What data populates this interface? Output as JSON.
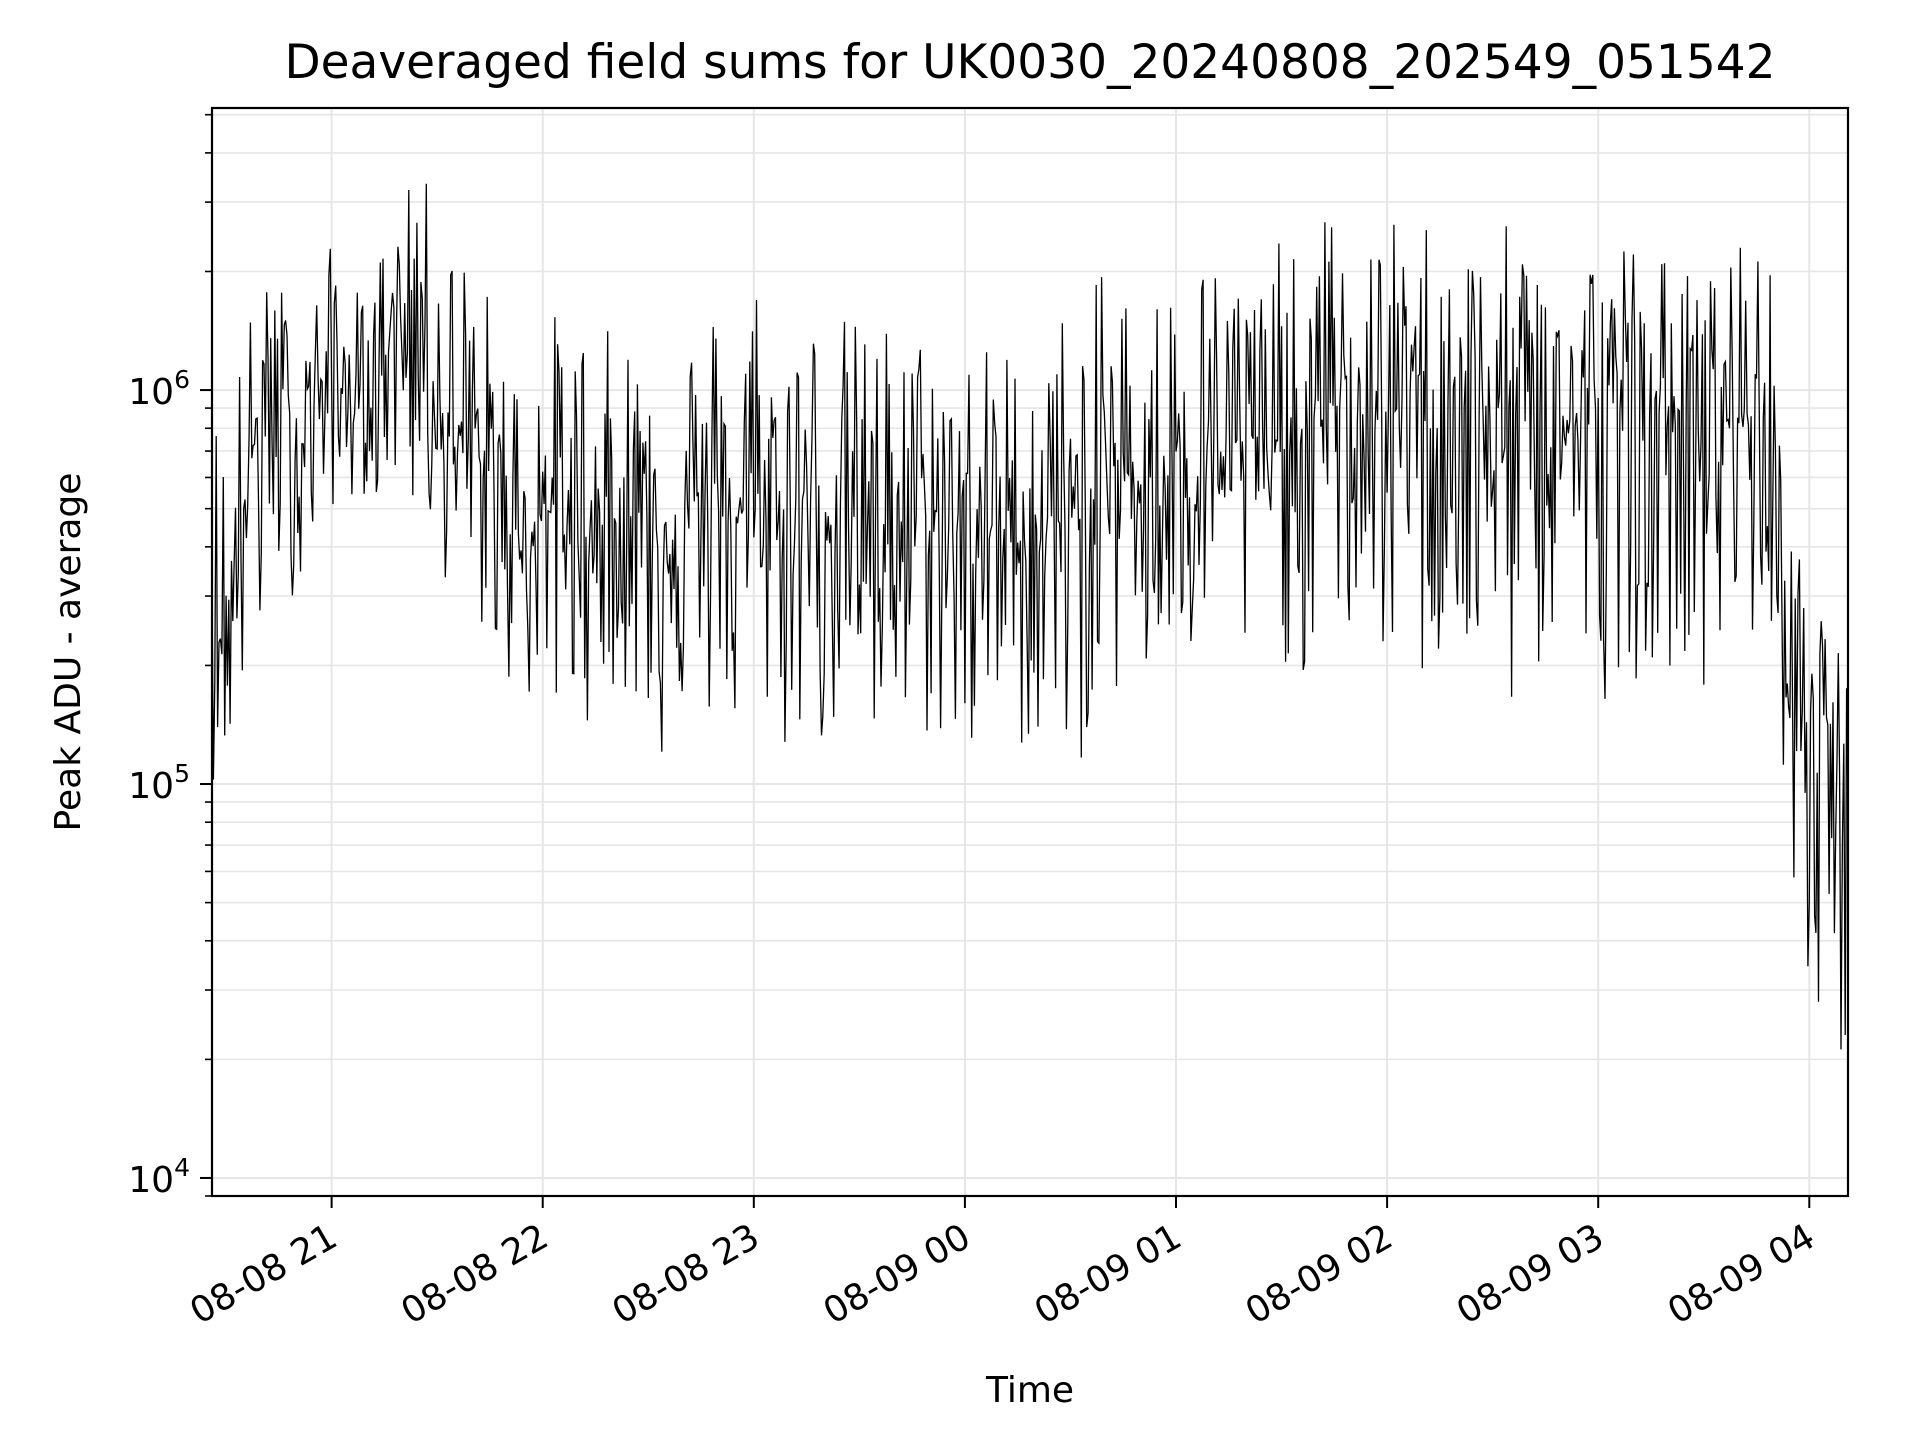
{
  "chart_data": {
    "type": "line",
    "title": "Deaveraged field sums for UK0030_20240808_202549_051542",
    "xlabel": "Time",
    "ylabel": "Peak ADU - average",
    "y_scale": "log",
    "ylim": [
      9000,
      5200000
    ],
    "xlim": [
      "2024-08-08 20:26",
      "2024-08-09 04:11"
    ],
    "grid": true,
    "legend": "none",
    "line_color": "#000000",
    "grid_color": "#e6e6e6",
    "x_ticks": [
      {
        "value": "2024-08-08 21:00",
        "label": "08-08 21"
      },
      {
        "value": "2024-08-08 22:00",
        "label": "08-08 22"
      },
      {
        "value": "2024-08-08 23:00",
        "label": "08-08 23"
      },
      {
        "value": "2024-08-09 00:00",
        "label": "08-09 00"
      },
      {
        "value": "2024-08-09 01:00",
        "label": "08-09 01"
      },
      {
        "value": "2024-08-09 02:00",
        "label": "08-09 02"
      },
      {
        "value": "2024-08-09 03:00",
        "label": "08-09 03"
      },
      {
        "value": "2024-08-09 04:00",
        "label": "08-09 04"
      }
    ],
    "y_ticks": [
      {
        "value": 10000,
        "base": "10",
        "exp": "4"
      },
      {
        "value": 100000,
        "base": "10",
        "exp": "5"
      },
      {
        "value": 1000000,
        "base": "10",
        "exp": "6"
      }
    ],
    "series": [
      {
        "x": [
          "2024-08-08 20:26",
          "2024-08-08 20:30",
          "2024-08-08 20:35",
          "2024-08-08 20:40",
          "2024-08-08 20:45",
          "2024-08-08 20:50",
          "2024-08-08 20:55",
          "2024-08-08 21:00",
          "2024-08-08 21:05",
          "2024-08-08 21:10",
          "2024-08-08 21:15",
          "2024-08-08 21:20",
          "2024-08-08 21:25",
          "2024-08-08 21:30",
          "2024-08-08 21:35",
          "2024-08-08 21:40",
          "2024-08-08 21:45",
          "2024-08-08 21:50",
          "2024-08-08 21:55",
          "2024-08-08 22:00",
          "2024-08-08 22:05",
          "2024-08-08 22:10",
          "2024-08-08 22:15",
          "2024-08-08 22:20",
          "2024-08-08 22:25",
          "2024-08-08 22:30",
          "2024-08-08 22:35",
          "2024-08-08 22:40",
          "2024-08-08 22:45",
          "2024-08-08 22:50",
          "2024-08-08 22:55",
          "2024-08-08 23:00",
          "2024-08-08 23:05",
          "2024-08-08 23:10",
          "2024-08-08 23:15",
          "2024-08-08 23:20",
          "2024-08-08 23:25",
          "2024-08-08 23:30",
          "2024-08-08 23:35",
          "2024-08-08 23:40",
          "2024-08-08 23:45",
          "2024-08-08 23:50",
          "2024-08-08 23:55",
          "2024-08-09 00:00",
          "2024-08-09 00:05",
          "2024-08-09 00:10",
          "2024-08-09 00:15",
          "2024-08-09 00:20",
          "2024-08-09 00:25",
          "2024-08-09 00:30",
          "2024-08-09 00:35",
          "2024-08-09 00:40",
          "2024-08-09 00:45",
          "2024-08-09 00:50",
          "2024-08-09 00:55",
          "2024-08-09 01:00",
          "2024-08-09 01:05",
          "2024-08-09 01:10",
          "2024-08-09 01:15",
          "2024-08-09 01:20",
          "2024-08-09 01:25",
          "2024-08-09 01:30",
          "2024-08-09 01:35",
          "2024-08-09 01:40",
          "2024-08-09 01:45",
          "2024-08-09 01:50",
          "2024-08-09 01:55",
          "2024-08-09 02:00",
          "2024-08-09 02:05",
          "2024-08-09 02:10",
          "2024-08-09 02:15",
          "2024-08-09 02:20",
          "2024-08-09 02:25",
          "2024-08-09 02:30",
          "2024-08-09 02:35",
          "2024-08-09 02:40",
          "2024-08-09 02:45",
          "2024-08-09 02:50",
          "2024-08-09 02:55",
          "2024-08-09 03:00",
          "2024-08-09 03:05",
          "2024-08-09 03:10",
          "2024-08-09 03:15",
          "2024-08-09 03:20",
          "2024-08-09 03:25",
          "2024-08-09 03:30",
          "2024-08-09 03:35",
          "2024-08-09 03:40",
          "2024-08-09 03:45",
          "2024-08-09 03:50",
          "2024-08-09 03:53",
          "2024-08-09 03:56",
          "2024-08-09 04:00",
          "2024-08-09 04:03",
          "2024-08-09 04:06",
          "2024-08-09 04:09",
          "2024-08-09 04:11"
        ],
        "y": [
          400000,
          180000,
          520000,
          900000,
          1050000,
          640000,
          1100000,
          950000,
          1000000,
          820000,
          1300000,
          1600000,
          1800000,
          950000,
          700000,
          720000,
          600000,
          450000,
          420000,
          500000,
          480000,
          430000,
          420000,
          470000,
          510000,
          480000,
          440000,
          520000,
          470000,
          500000,
          480000,
          500000,
          450000,
          480000,
          520000,
          500000,
          460000,
          480000,
          440000,
          460000,
          470000,
          450000,
          430000,
          460000,
          420000,
          450000,
          410000,
          440000,
          480000,
          430000,
          520000,
          600000,
          640000,
          580000,
          620000,
          600000,
          700000,
          720000,
          680000,
          760000,
          720000,
          700000,
          760000,
          820000,
          920000,
          870000,
          820000,
          880000,
          900000,
          950000,
          1000000,
          900000,
          850000,
          820000,
          780000,
          880000,
          800000,
          840000,
          760000,
          960000,
          900000,
          820000,
          860000,
          900000,
          840000,
          780000,
          820000,
          860000,
          900000,
          880000,
          170000,
          140000,
          160000,
          150000,
          120000,
          100000,
          90000
        ],
        "y_low": [
          100000,
          120000,
          150000,
          200000,
          300000,
          300000,
          350000,
          500000,
          500000,
          550000,
          500000,
          600000,
          400000,
          350000,
          300000,
          250000,
          220000,
          180000,
          150000,
          160000,
          130000,
          150000,
          140000,
          170000,
          160000,
          120000,
          110000,
          140000,
          130000,
          150000,
          120000,
          130000,
          140000,
          110000,
          130000,
          120000,
          140000,
          130000,
          100000,
          120000,
          110000,
          130000,
          120000,
          100000,
          110000,
          130000,
          120000,
          120000,
          110000,
          100000,
          120000,
          140000,
          180000,
          170000,
          160000,
          200000,
          190000,
          210000,
          220000,
          180000,
          200000,
          210000,
          170000,
          220000,
          200000,
          230000,
          200000,
          200000,
          120000,
          170000,
          190000,
          180000,
          160000,
          170000,
          140000,
          180000,
          190000,
          200000,
          170000,
          140000,
          200000,
          180000,
          200000,
          190000,
          220000,
          150000,
          190000,
          200000,
          230000,
          180000,
          40000,
          60000,
          30000,
          20000,
          60000,
          13000,
          30000
        ],
        "y_high": [
          900000,
          1000000,
          1500000,
          1800000,
          2000000,
          1400000,
          1700000,
          2400000,
          2200000,
          1600000,
          2600000,
          2900000,
          3900000,
          2800000,
          2600000,
          2100000,
          1800000,
          1300000,
          1200000,
          1400000,
          1700000,
          1600000,
          1300000,
          1500000,
          1400000,
          1600000,
          1500000,
          1400000,
          1700000,
          1700000,
          1400000,
          2300000,
          1500000,
          1600000,
          1700000,
          1500000,
          1600000,
          1500000,
          1600000,
          1500000,
          1400000,
          1500000,
          1300000,
          1400000,
          1300000,
          1500000,
          1200000,
          1300000,
          1600000,
          1700000,
          1500000,
          2400000,
          2000000,
          1700000,
          1900000,
          2200000,
          2400000,
          2200000,
          2300000,
          2000000,
          2100000,
          2600000,
          2000000,
          2900000,
          2800000,
          2000000,
          2300000,
          2900000,
          2400000,
          2800000,
          2900000,
          2400000,
          2500000,
          2100000,
          2800000,
          2400000,
          2900000,
          2500000,
          2200000,
          2600000,
          2200000,
          2900000,
          2300000,
          2200000,
          2100000,
          2000000,
          2000000,
          3700000,
          2200000,
          2000000,
          450000,
          480000,
          250000,
          280000,
          200000,
          230000,
          220000
        ]
      }
    ]
  }
}
